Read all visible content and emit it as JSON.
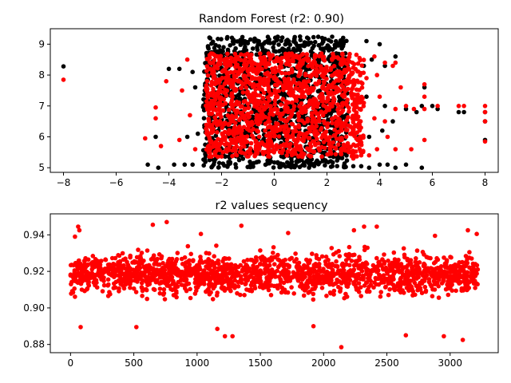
{
  "chart_data": [
    {
      "type": "scatter",
      "title": "Random Forest (r2: 0.90)",
      "xlim": [
        -8.5,
        8.5
      ],
      "ylim": [
        4.85,
        9.5
      ],
      "xticks": [
        -8,
        -6,
        -4,
        -2,
        0,
        2,
        4,
        6,
        8
      ],
      "yticks": [
        5,
        6,
        7,
        8,
        9
      ],
      "grid": false,
      "colors": {
        "actual": "#000000",
        "predicted": "#ff0000"
      },
      "series": [
        {
          "color": "#000000",
          "dense_region": {
            "x": [
              -2.7,
              2.8
            ],
            "y": [
              5.0,
              9.25
            ]
          },
          "values": [
            [
              -8,
              8.28
            ],
            [
              -4.8,
              5.1
            ],
            [
              -4.5,
              6.0
            ],
            [
              -4.4,
              5.0
            ],
            [
              -3.8,
              5.1
            ],
            [
              -3.4,
              5.1
            ],
            [
              -3.1,
              5.1
            ],
            [
              -4.0,
              8.2
            ],
            [
              -3.6,
              8.2
            ],
            [
              -3.1,
              8.1
            ],
            [
              -3.0,
              7.6
            ],
            [
              -3.3,
              6.0
            ],
            [
              -2.9,
              6.1
            ],
            [
              3.0,
              5.05
            ],
            [
              3.3,
              5.05
            ],
            [
              3.6,
              5.0
            ],
            [
              4.0,
              5.1
            ],
            [
              4.3,
              5.1
            ],
            [
              4.6,
              5.0
            ],
            [
              5.0,
              5.1
            ],
            [
              5.6,
              5.0
            ],
            [
              3.2,
              6.0
            ],
            [
              3.6,
              6.0
            ],
            [
              4.1,
              6.2
            ],
            [
              4.5,
              6.5
            ],
            [
              5.0,
              6.9
            ],
            [
              5.4,
              6.8
            ],
            [
              5.6,
              7.0
            ],
            [
              5.7,
              7.6
            ],
            [
              6.0,
              7.0
            ],
            [
              6.2,
              6.9
            ],
            [
              7.0,
              6.8
            ],
            [
              7.2,
              6.8
            ],
            [
              8,
              6.5
            ],
            [
              8,
              5.9
            ],
            [
              8,
              6.8
            ],
            [
              3.4,
              8.3
            ],
            [
              3.7,
              8.5
            ],
            [
              4.2,
              8.3
            ],
            [
              4.6,
              8.6
            ],
            [
              3.5,
              9.1
            ],
            [
              4.0,
              9.0
            ],
            [
              3.0,
              7.8
            ],
            [
              3.5,
              7.3
            ],
            [
              4.2,
              7.0
            ]
          ]
        },
        {
          "color": "#ff0000",
          "dense_region": {
            "x": [
              -2.6,
              3.4
            ],
            "y": [
              5.35,
              8.7
            ]
          },
          "values": [
            [
              -8,
              7.85
            ],
            [
              -4.9,
              5.95
            ],
            [
              -4.5,
              6.95
            ],
            [
              -4.5,
              6.6
            ],
            [
              -4.3,
              5.7
            ],
            [
              -4.1,
              7.8
            ],
            [
              -3.6,
              5.9
            ],
            [
              -3.5,
              7.5
            ],
            [
              -3.2,
              6.7
            ],
            [
              -3.3,
              8.5
            ],
            [
              -3.0,
              5.6
            ],
            [
              3.0,
              5.3
            ],
            [
              3.3,
              5.4
            ],
            [
              3.6,
              5.4
            ],
            [
              3.9,
              5.6
            ],
            [
              4.3,
              6.0
            ],
            [
              4.6,
              5.6
            ],
            [
              5.2,
              5.6
            ],
            [
              5.7,
              5.9
            ],
            [
              3.2,
              6.3
            ],
            [
              3.8,
              6.6
            ],
            [
              4.2,
              6.5
            ],
            [
              4.6,
              6.9
            ],
            [
              5.0,
              7.0
            ],
            [
              5.3,
              6.9
            ],
            [
              5.7,
              6.9
            ],
            [
              5.7,
              7.3
            ],
            [
              5.7,
              7.7
            ],
            [
              6.2,
              7.0
            ],
            [
              7.0,
              7.0
            ],
            [
              7.2,
              7.0
            ],
            [
              8,
              7.0
            ],
            [
              8,
              6.5
            ],
            [
              8,
              5.85
            ],
            [
              8,
              6.8
            ],
            [
              3.5,
              7.9
            ],
            [
              3.9,
              8.0
            ],
            [
              4.2,
              8.4
            ],
            [
              4.5,
              8.3
            ],
            [
              4.6,
              8.4
            ],
            [
              3.8,
              8.6
            ],
            [
              3.4,
              7.1
            ],
            [
              4.0,
              7.3
            ],
            [
              4.8,
              7.6
            ]
          ]
        }
      ]
    },
    {
      "type": "scatter",
      "title": "r2 values sequency",
      "xlim": [
        -160,
        3380
      ],
      "ylim": [
        0.8755,
        0.9515
      ],
      "xticks": [
        0,
        500,
        1000,
        1500,
        2000,
        2500,
        3000
      ],
      "yticks": [
        0.88,
        0.9,
        0.92,
        0.94
      ],
      "yticks_display": [
        "0.88",
        "0.90",
        "0.92",
        "0.94"
      ],
      "grid": false,
      "series": [
        {
          "color": "#ff0000",
          "x_range": [
            0,
            3220
          ],
          "mean": 0.9185,
          "core_range": [
            0.898,
            0.935
          ],
          "values": [
            [
              60,
              0.9445
            ],
            [
              70,
              0.9425
            ],
            [
              35,
              0.939
            ],
            [
              650,
              0.9455
            ],
            [
              760,
              0.947
            ],
            [
              1350,
              0.945
            ],
            [
              2140,
              0.8785
            ],
            [
              1220,
              0.8845
            ],
            [
              1280,
              0.8845
            ],
            [
              1160,
              0.8885
            ],
            [
              2320,
              0.9445
            ],
            [
              2950,
              0.8845
            ],
            [
              3100,
              0.8825
            ],
            [
              3210,
              0.9405
            ],
            [
              3140,
              0.9425
            ],
            [
              2650,
              0.885
            ],
            [
              2240,
              0.9425
            ],
            [
              80,
              0.8895
            ],
            [
              520,
              0.8895
            ],
            [
              1030,
              0.9405
            ],
            [
              1720,
              0.941
            ],
            [
              1920,
              0.89
            ],
            [
              2420,
              0.9445
            ],
            [
              2880,
              0.9395
            ]
          ]
        }
      ]
    }
  ]
}
